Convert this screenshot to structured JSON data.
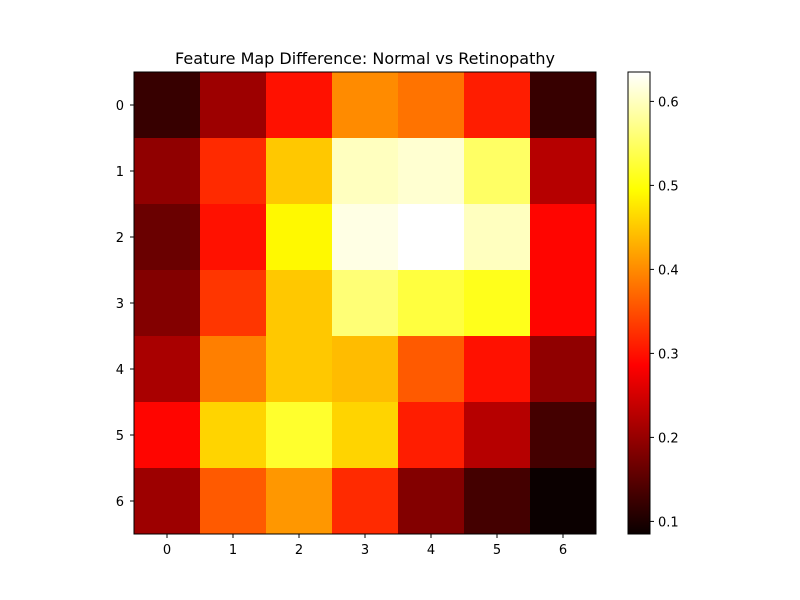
{
  "chart_data": {
    "type": "heatmap",
    "title": "Feature Map Difference: Normal vs Retinopathy",
    "xlabel": "",
    "ylabel": "",
    "x_categories": [
      "0",
      "1",
      "2",
      "3",
      "4",
      "5",
      "6"
    ],
    "y_categories": [
      "0",
      "1",
      "2",
      "3",
      "4",
      "5",
      "6"
    ],
    "values": [
      [
        0.12,
        0.2,
        0.3,
        0.4,
        0.38,
        0.31,
        0.12
      ],
      [
        0.19,
        0.32,
        0.45,
        0.6,
        0.61,
        0.55,
        0.22
      ],
      [
        0.16,
        0.3,
        0.49,
        0.62,
        0.635,
        0.6,
        0.29
      ],
      [
        0.18,
        0.33,
        0.45,
        0.56,
        0.53,
        0.51,
        0.29
      ],
      [
        0.21,
        0.39,
        0.45,
        0.44,
        0.36,
        0.3,
        0.19
      ],
      [
        0.29,
        0.46,
        0.52,
        0.46,
        0.31,
        0.22,
        0.13
      ],
      [
        0.2,
        0.36,
        0.41,
        0.32,
        0.18,
        0.13,
        0.085
      ]
    ],
    "colormap": "hot",
    "color_range": [
      0.085,
      0.635
    ],
    "colorbar_ticks": [
      "0.1",
      "0.2",
      "0.3",
      "0.4",
      "0.5",
      "0.6"
    ],
    "colorbar_tick_values": [
      0.1,
      0.2,
      0.3,
      0.4,
      0.5,
      0.6
    ],
    "grid": false
  }
}
